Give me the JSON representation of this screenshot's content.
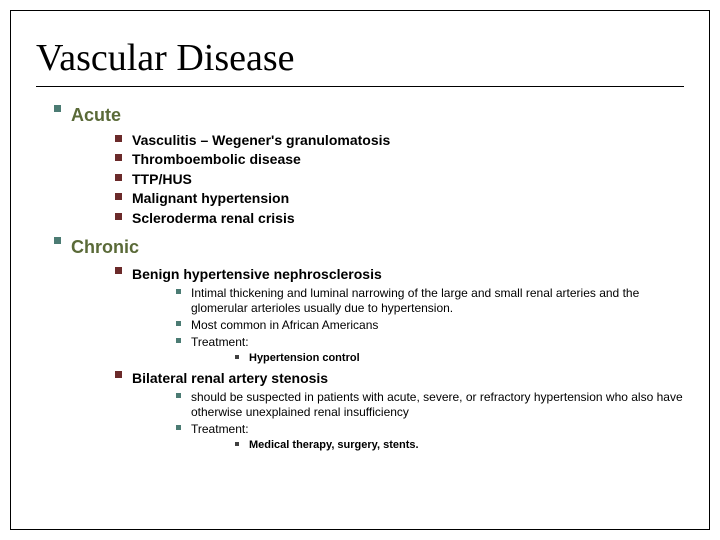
{
  "title": "Vascular Disease",
  "colors": {
    "bullet_teal": "#4b7b73",
    "bullet_maroon": "#6b2a2a",
    "bullet_grey": "#404040",
    "section_text": "#5a6a38",
    "body_text": "#000000",
    "background": "#ffffff",
    "rule": "#000000"
  },
  "typography": {
    "title_family": "Times New Roman",
    "title_size_pt": 28,
    "section_size_pt": 14,
    "item_size_pt": 11,
    "subitem_size_pt": 9,
    "deep_size_pt": 8
  },
  "sections": {
    "acute": {
      "label": "Acute",
      "items": [
        "Vasculitis – Wegener's granulomatosis",
        "Thromboembolic disease",
        "TTP/HUS",
        "Malignant hypertension",
        "Scleroderma renal crisis"
      ]
    },
    "chronic": {
      "label": "Chronic",
      "sub": {
        "bhn": {
          "label": "Benign hypertensive nephrosclerosis",
          "items": [
            "Intimal thickening and luminal narrowing of the large and small renal arteries and the glomerular arterioles usually due to hypertension.",
            "Most common in African Americans",
            "Treatment:"
          ],
          "treatment_sub": [
            "Hypertension control"
          ]
        },
        "bras": {
          "label": "Bilateral renal artery stenosis",
          "items": [
            "should be suspected in patients with acute, severe, or refractory hypertension who also have otherwise unexplained renal insufficiency",
            "Treatment:"
          ],
          "treatment_sub": [
            "Medical therapy, surgery, stents."
          ]
        }
      }
    }
  }
}
